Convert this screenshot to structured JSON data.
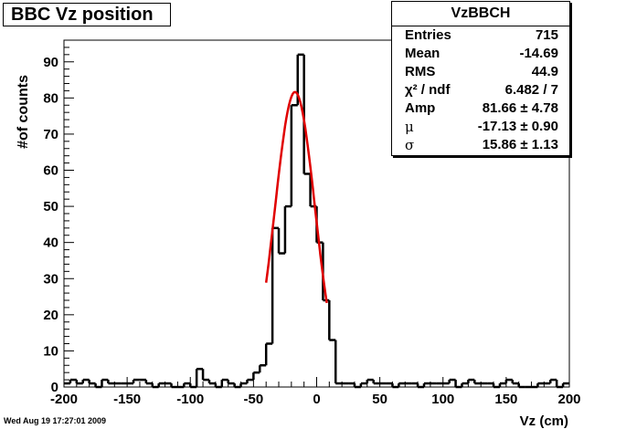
{
  "chart_data": {
    "type": "bar",
    "title": "BBC Vz position",
    "xlabel": "Vz (cm)",
    "ylabel": "#of counts",
    "xlim": [
      -200,
      200
    ],
    "ylim": [
      0,
      96
    ],
    "bin_width": 5,
    "x_ticks": [
      "-200",
      "-150",
      "-100",
      "-50",
      "0",
      "50",
      "100",
      "150",
      "200"
    ],
    "y_ticks": [
      "0",
      "10",
      "20",
      "30",
      "40",
      "50",
      "60",
      "70",
      "80",
      "90"
    ],
    "histogram": {
      "name": "VzBBCH",
      "bin_edges_start": -200,
      "values": [
        1,
        2,
        1,
        2,
        1,
        0,
        2,
        1,
        1,
        1,
        1,
        2,
        2,
        1,
        0,
        1,
        1,
        0,
        0,
        1,
        0,
        5,
        2,
        1,
        0,
        2,
        1,
        0,
        1,
        2,
        4,
        6,
        12,
        44,
        37,
        50,
        78,
        92,
        59,
        50,
        40,
        24,
        13,
        1,
        1,
        1,
        0,
        1,
        2,
        1,
        1,
        1,
        0,
        1,
        1,
        1,
        0,
        1,
        1,
        1,
        1,
        2,
        0,
        1,
        2,
        1,
        1,
        1,
        0,
        1,
        2,
        1,
        0,
        0,
        0,
        1,
        1,
        2,
        0,
        1
      ]
    },
    "fit": {
      "name": "gaus",
      "color": "#e00000",
      "amp": 81.66,
      "mu": -17.13,
      "sigma": 15.86,
      "range": [
        -40,
        8
      ]
    }
  },
  "stats_box": {
    "name": "VzBBCH",
    "rows": [
      {
        "key": "Entries",
        "value": "715"
      },
      {
        "key": "Mean",
        "value": "-14.69"
      },
      {
        "key": "RMS",
        "value": "44.9"
      },
      {
        "key": "χ² / ndf",
        "value": "6.482 / 7"
      },
      {
        "key": "Amp",
        "value": "81.66 ± 4.78"
      },
      {
        "key": "μ",
        "value": "-17.13 ± 0.90"
      },
      {
        "key": "σ",
        "value": "15.86 ± 1.13"
      }
    ]
  },
  "timestamp": "Wed Aug 19 17:27:01 2009"
}
